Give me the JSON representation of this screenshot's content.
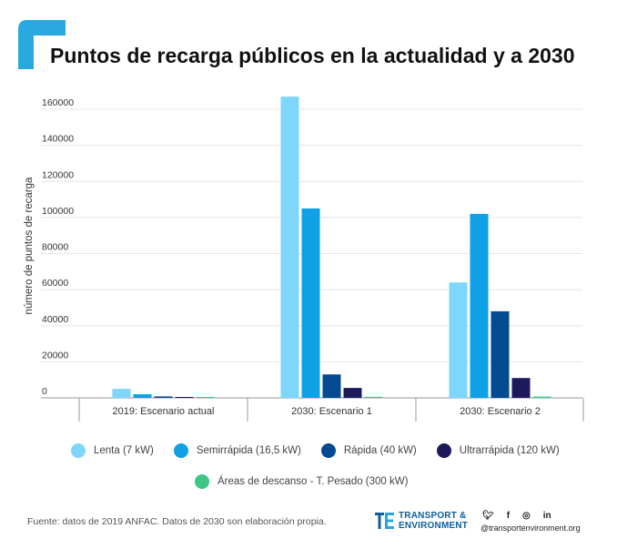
{
  "title": "Puntos de recarga públicos en la actualidad y a 2030",
  "source": "Fuente: datos de 2019 ANFAC. Datos de 2030 son elaboración propia.",
  "brand": {
    "line1": "TRANSPORT &",
    "line2": "ENVIRONMENT",
    "handle": "@transportenvironment.org",
    "social_icons": [
      "twitter-icon",
      "facebook-icon",
      "instagram-icon",
      "linkedin-icon"
    ]
  },
  "colors": {
    "accent": "#29a8e0",
    "lenta": "#7fd6fb",
    "semirrapida": "#0fa0e5",
    "rapida": "#034a91",
    "ultrarrapida": "#1c1a5a",
    "descanso": "#3cc884"
  },
  "chart_data": {
    "type": "bar",
    "title": "Puntos de recarga públicos en la actualidad y a 2030",
    "ylabel": "número de puntos de recarga",
    "xlabel": "",
    "ylim": [
      0,
      160000
    ],
    "yticks": [
      "0",
      "20000",
      "40000",
      "60000",
      "80000",
      "100000",
      "120000",
      "140000",
      "160000"
    ],
    "categories": [
      "2019: Escenario actual",
      "2030: Escenario 1",
      "2030: Escenario 2"
    ],
    "series": [
      {
        "name": "Lenta (7 kW)",
        "color": "#7fd6fb",
        "values": [
          5000,
          167000,
          64000
        ]
      },
      {
        "name": "Semirrápida (16,5 kW)",
        "color": "#0fa0e5",
        "values": [
          2000,
          105000,
          102000
        ]
      },
      {
        "name": "Rápida (40 kW)",
        "color": "#034a91",
        "values": [
          800,
          13000,
          48000
        ]
      },
      {
        "name": "Ultrarrápida (120 kW)",
        "color": "#1c1a5a",
        "values": [
          200,
          5500,
          11000
        ]
      },
      {
        "name": "Áreas de descanso - T. Pesado (300 kW)",
        "color": "#3cc884",
        "values": [
          100,
          600,
          700
        ]
      }
    ],
    "grid": true,
    "legend": "bottom"
  }
}
